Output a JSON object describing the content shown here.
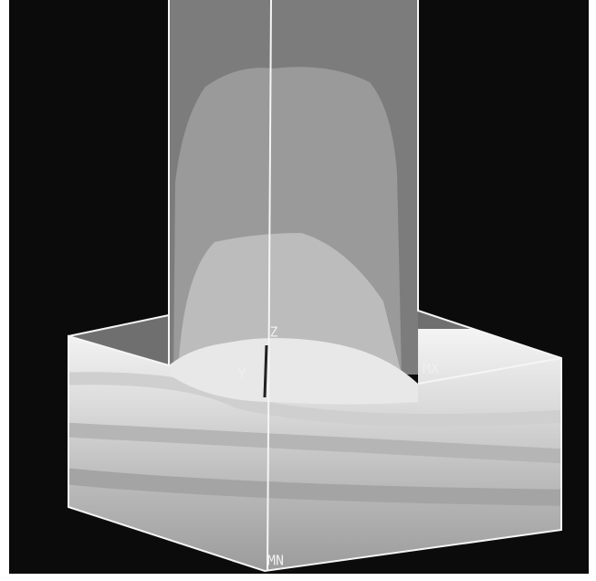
{
  "labels": {
    "z_axis": "Z",
    "y_axis": "Y",
    "max": "MX",
    "min": "MN"
  }
}
